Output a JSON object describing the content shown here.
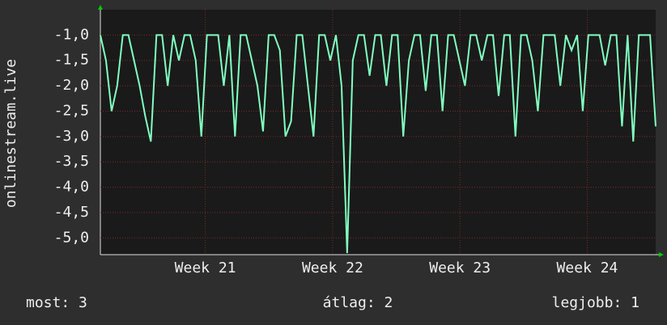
{
  "chart_data": {
    "type": "line",
    "y_label": "onlinestream.live",
    "series": [
      {
        "name": "onlinestream.live",
        "color": "#80ffc0",
        "values": [
          -1,
          -1.5,
          -2.5,
          -2,
          -1,
          -1,
          -1.5,
          -2,
          -2.6,
          -3.1,
          -1,
          -1,
          -2,
          -1,
          -1.5,
          -1,
          -1,
          -1.5,
          -3,
          -1,
          -1,
          -1,
          -2,
          -1,
          -3,
          -1,
          -1,
          -1.5,
          -2,
          -2.9,
          -1,
          -1,
          -1.3,
          -3,
          -2.7,
          -1,
          -1,
          -2,
          -3,
          -1,
          -1,
          -1.5,
          -1,
          -2,
          -5.3,
          -1.5,
          -1,
          -1,
          -1.8,
          -1,
          -1,
          -2,
          -1,
          -1,
          -3,
          -1.5,
          -1,
          -1,
          -2.1,
          -1,
          -1,
          -2.5,
          -1,
          -1,
          -1.5,
          -2,
          -1,
          -1,
          -1.5,
          -1,
          -1,
          -2.2,
          -1,
          -1,
          -3,
          -1,
          -1,
          -1.5,
          -2.5,
          -1,
          -1,
          -1,
          -2,
          -1,
          -1.3,
          -1,
          -2.5,
          -1,
          -1,
          -1,
          -1.6,
          -1,
          -1,
          -2.8,
          -1,
          -3.1,
          -1,
          -1,
          -1,
          -2.8
        ]
      }
    ],
    "xlim": [
      0,
      99
    ],
    "xticks": [
      {
        "value": 18.7,
        "label": "Week 21"
      },
      {
        "value": 41.4,
        "label": "Week 22"
      },
      {
        "value": 64.1,
        "label": "Week 23"
      },
      {
        "value": 86.8,
        "label": "Week 24"
      }
    ],
    "ylim": [
      -5.33,
      -0.5
    ],
    "yticks": [
      {
        "value": -1,
        "label": "-1,0"
      },
      {
        "value": -1.5,
        "label": "-1,5"
      },
      {
        "value": -2,
        "label": "-2,0"
      },
      {
        "value": -2.5,
        "label": "-2,5"
      },
      {
        "value": -3,
        "label": "-3,0"
      },
      {
        "value": -3.5,
        "label": "-3,5"
      },
      {
        "value": -4,
        "label": "-4,0"
      },
      {
        "value": -4.5,
        "label": "-4,5"
      },
      {
        "value": -5,
        "label": "-5,0"
      }
    ],
    "grid": true,
    "stats": [
      "most: 3",
      "átlag: 2",
      "legjobb: 1"
    ]
  }
}
